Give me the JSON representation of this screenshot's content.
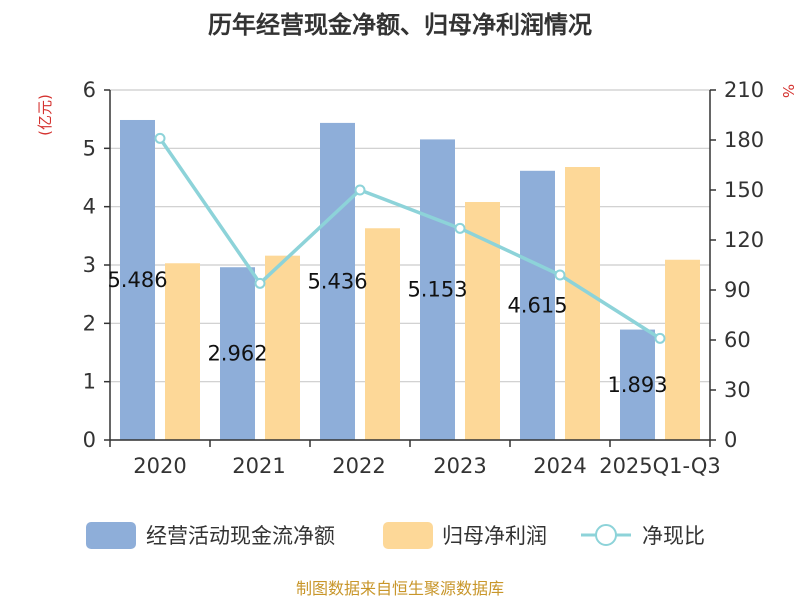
{
  "title": "历年经营现金净额、归母净利润情况",
  "source": "制图数据来自恒生聚源数据库",
  "colors": {
    "ocf": "#8eaed9",
    "net_profit": "#fdd898",
    "ratio": "#8dd3d9",
    "unit": "#d4322f",
    "source": "#c8962a"
  },
  "chart_data": {
    "type": "bar",
    "title": "历年经营现金净额、归母净利润情况",
    "categories": [
      "2020",
      "2021",
      "2022",
      "2023",
      "2024",
      "2025Q1-Q3"
    ],
    "left_axis": {
      "unit": "(亿元)",
      "ylim": [
        0,
        6
      ],
      "ticks": [
        "0",
        "1",
        "2",
        "3",
        "4",
        "5",
        "6"
      ]
    },
    "right_axis": {
      "unit": "%",
      "ylim": [
        0,
        210
      ],
      "ticks": [
        "0",
        "30",
        "60",
        "90",
        "120",
        "150",
        "180",
        "210"
      ]
    },
    "grid": true,
    "legend_position": "bottom",
    "series": [
      {
        "name": "经营活动现金流净额",
        "type": "bar",
        "axis": "left",
        "values": [
          5.486,
          2.962,
          5.436,
          5.153,
          4.615,
          1.893
        ],
        "labels": [
          "5.486",
          "2.962",
          "5.436",
          "5.153",
          "4.615",
          "1.893"
        ]
      },
      {
        "name": "归母净利润",
        "type": "bar",
        "axis": "left",
        "values": [
          3.03,
          3.16,
          3.63,
          4.08,
          4.68,
          3.09
        ]
      },
      {
        "name": "净现比",
        "type": "line",
        "axis": "right",
        "values": [
          181,
          94,
          150,
          127,
          99,
          61
        ]
      }
    ]
  }
}
